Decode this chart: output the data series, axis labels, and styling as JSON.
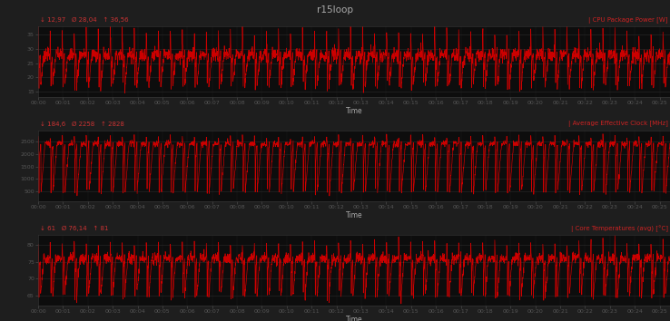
{
  "title": "r15loop",
  "fig_bg": "#1e1e1e",
  "panel_bg": "#0d0d0d",
  "header_bg": "#232323",
  "separator_bg": "#3a3a3a",
  "line_color": "#cc0000",
  "text_color": "#aaaaaa",
  "label_color": "#cc3333",
  "right_label_color": "#cc2222",
  "panels": [
    {
      "label_left": "↓ 12,97   Ø 28,04   ↑ 36,56",
      "label_right": "| CPU Package Power [W]",
      "yticks": [
        15,
        20,
        25,
        30,
        35
      ],
      "ylim": [
        13,
        38
      ],
      "base_val": 28.0,
      "spike_val": 36.5,
      "low_val": 17.0,
      "noise_amp": 1.2,
      "cycle_sec": 29,
      "spike_sec": 2,
      "drop_sec": 4,
      "recover_sec": 8
    },
    {
      "label_left": "↓ 184,6   Ø 2258   ↑ 2828",
      "label_right": "| Average Effective Clock [MHz]",
      "yticks": [
        500,
        1000,
        1500,
        2000,
        2500
      ],
      "ylim": [
        100,
        2950
      ],
      "base_val": 2420.0,
      "spike_val": 2720.0,
      "low_val": 480.0,
      "noise_amp": 60.0,
      "cycle_sec": 29,
      "spike_sec": 2,
      "drop_sec": 5,
      "recover_sec": 10
    },
    {
      "label_left": "↓ 61   Ø 76,14   ↑ 81",
      "label_right": "| Core Temperatures (avg) [°C]",
      "yticks": [
        65,
        70,
        75,
        80
      ],
      "ylim": [
        62,
        83
      ],
      "base_val": 76.0,
      "spike_val": 80.5,
      "low_val": 65.0,
      "noise_amp": 0.8,
      "cycle_sec": 29,
      "spike_sec": 2,
      "drop_sec": 4,
      "recover_sec": 8
    }
  ],
  "duration_seconds": 1525,
  "xtick_minutes": [
    0,
    1,
    2,
    3,
    4,
    5,
    6,
    7,
    8,
    9,
    10,
    11,
    12,
    13,
    14,
    15,
    16,
    17,
    18,
    19,
    20,
    21,
    22,
    23,
    24,
    25
  ],
  "xlabel": "Time",
  "title_fontsize": 7.5,
  "label_fontsize": 5.0,
  "tick_fontsize": 4.5
}
